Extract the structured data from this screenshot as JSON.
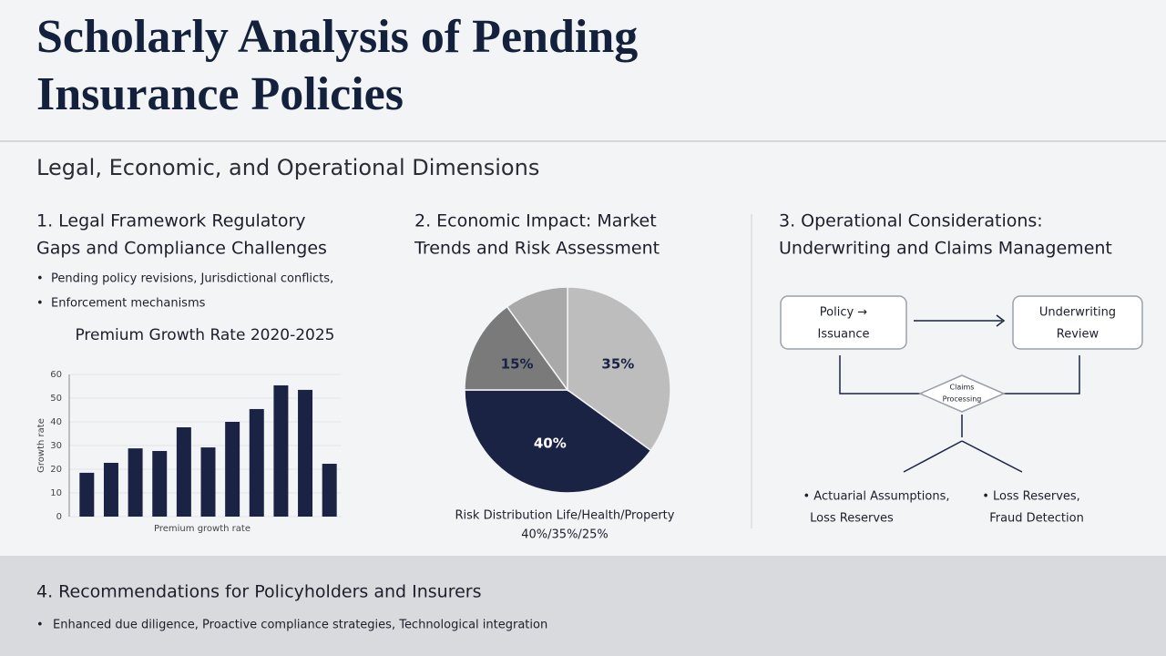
{
  "title": [
    "Scholarly Analysis of Pending",
    "Insurance Policies"
  ],
  "subtitle": "Legal, Economic, and Operational Dimensions",
  "sections": [
    {
      "heading": [
        "1. Legal Framework Regulatory",
        "Gaps and Compliance Challenges"
      ],
      "bullets": [
        "Pending policy revisions, Jurisdictional conflicts,",
        "Enforcement mechanisms"
      ]
    },
    {
      "heading": [
        "2. Economic Impact: Market",
        "Trends and Risk Assessment"
      ]
    },
    {
      "heading": [
        "3. Operational Considerations:",
        "Underwriting and Claims Management"
      ]
    },
    {
      "heading": [
        "4. Recommendations for Policyholders and Insurers"
      ],
      "bullets": [
        "Enhanced due diligence, Proactive compliance strategies, Technological integration"
      ]
    }
  ],
  "diagram": {
    "nodes": [
      [
        "Policy →",
        "Issuance"
      ],
      [
        "Underwriting",
        "Review"
      ],
      [
        "Claims",
        "Processing"
      ]
    ],
    "notes": [
      [
        "• Actuarial Assumptions,",
        "Loss Reserves"
      ],
      [
        "• Loss Reserves,",
        "Fraud Detection"
      ]
    ]
  },
  "chart_data": [
    {
      "type": "bar",
      "title": "Premium Growth Rate 2020-2025",
      "x_label": "Premium growth rate",
      "y_label": "Growth rate",
      "categories": [
        null,
        null,
        null,
        null,
        null,
        null,
        null,
        null,
        null,
        null,
        null
      ],
      "values": [
        18.5,
        22.7,
        28.8,
        27.7,
        37.7,
        29.2,
        40,
        45.4,
        55.4,
        53.5,
        22.3
      ],
      "color": "#1a2344",
      "ylim": [
        0,
        60
      ],
      "yticks": [
        0,
        10,
        20,
        30,
        40,
        50,
        60
      ]
    },
    {
      "type": "pie",
      "title": "Risk Distribution Life/Health/Property",
      "subtitle": "40%/35%/25%",
      "values": [
        35,
        40,
        15,
        10
      ],
      "value_labels": [
        "35%",
        "40%",
        "15%",
        null
      ],
      "colors": [
        "#bdbdbd",
        "#1a2344",
        "#7a7a7a",
        "#a9a9a9"
      ]
    }
  ]
}
